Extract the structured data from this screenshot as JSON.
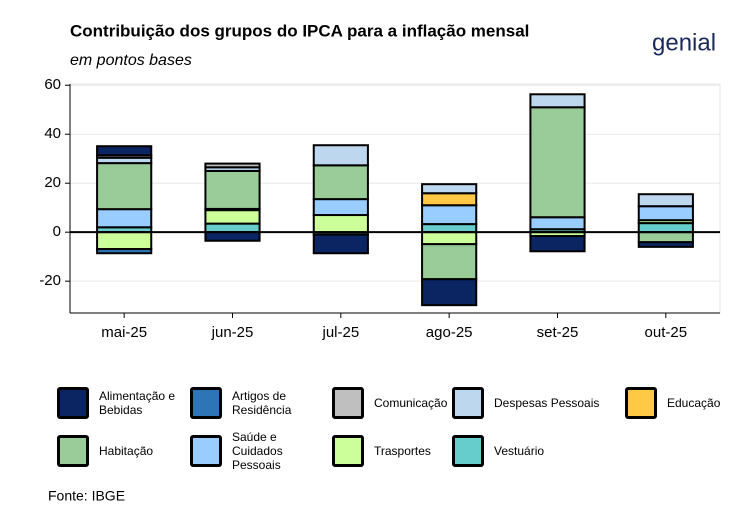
{
  "chart_data": {
    "type": "stacked-bar",
    "title": "Contribuição dos grupos do IPCA para a inflação mensal",
    "subtitle": "em pontos bases",
    "logo": "genial",
    "source": "Fonte: IBGE",
    "categories": [
      "mai-25",
      "jun-25",
      "jul-25",
      "ago-25",
      "set-25",
      "out-25"
    ],
    "ylim": [
      -33,
      60.5
    ],
    "yticks": [
      -20,
      0,
      20,
      40,
      60
    ],
    "grid": true,
    "series": [
      {
        "name": "Alimentação e Bebidas",
        "color": "#0b2563",
        "values": [
          3.7,
          -3.5,
          -7.6,
          -10.6,
          -6.2,
          -1.9
        ]
      },
      {
        "name": "Artigos de Residência",
        "color": "#2e75b6",
        "values": [
          -1.7,
          0,
          0,
          0,
          0,
          0
        ]
      },
      {
        "name": "Comunicação",
        "color": "#bfbfbf",
        "values": [
          1,
          1.5,
          0,
          0,
          0,
          0
        ]
      },
      {
        "name": "Despesas Pessoais",
        "color": "#bdd7ee",
        "values": [
          2.2,
          1.5,
          8.2,
          3.7,
          5.3,
          4.9
        ]
      },
      {
        "name": "Educação",
        "color": "#ffc845",
        "values": [
          0,
          0,
          0,
          4.9,
          0,
          0
        ]
      },
      {
        "name": "Habitação",
        "color": "#99cc99",
        "values": [
          18.8,
          15.5,
          13.8,
          -14.3,
          44.9,
          -4.1
        ]
      },
      {
        "name": "Saúde e Cuidados Pessoais",
        "color": "#99ccff",
        "values": [
          7.4,
          0.5,
          6.5,
          7.7,
          4.9,
          5.7
        ]
      },
      {
        "name": "Trasportes",
        "color": "#ccff99",
        "values": [
          -6.9,
          5.5,
          7,
          -4.9,
          -1.6,
          1.2
        ]
      },
      {
        "name": "Vestuário",
        "color": "#66cccc",
        "values": [
          2,
          3.5,
          -1,
          3.3,
          1.2,
          3.7
        ]
      }
    ]
  }
}
